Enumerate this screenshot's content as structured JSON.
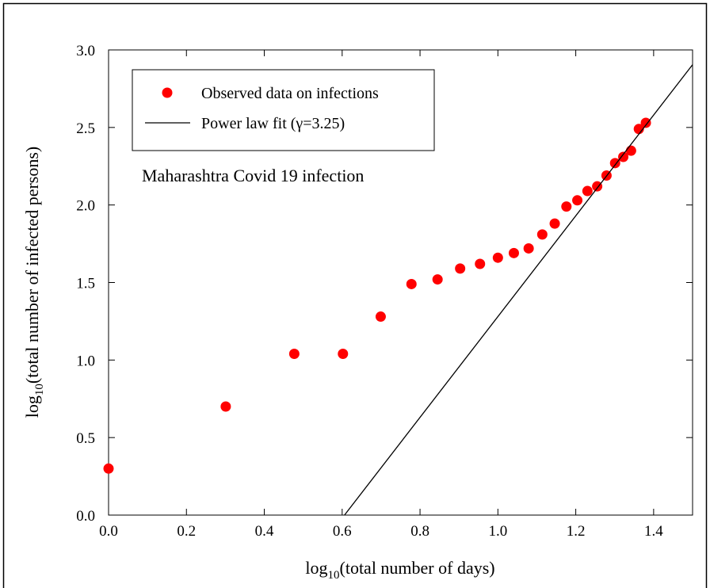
{
  "chart_data": {
    "type": "scatter",
    "annotation": "Maharashtra Covid 19 infection",
    "xlabel": [
      "log",
      "10",
      "(total number of days)"
    ],
    "ylabel": [
      "log",
      "10",
      "(total number of infected persons)"
    ],
    "xlim": [
      0,
      1.5
    ],
    "ylim": [
      0,
      3
    ],
    "xticks": [
      {
        "value": 0,
        "label": "0.0"
      },
      0.2,
      0.4,
      0.6,
      0.8,
      {
        "value": 1,
        "label": "1.0"
      },
      1.2,
      1.4
    ],
    "yticks": [
      {
        "value": 0,
        "label": "0.0"
      },
      0.5,
      {
        "value": 1,
        "label": "1.0"
      },
      1.5,
      {
        "value": 2,
        "label": "2.0"
      },
      2.5,
      {
        "value": 3,
        "label": "3.0"
      }
    ],
    "series": [
      {
        "name": "Observed data on infections",
        "type": "scatter",
        "color": "#ff0000",
        "x": [
          0,
          0.301,
          0.477,
          0.602,
          0.699,
          0.778,
          0.845,
          0.903,
          0.954,
          1.0,
          1.041,
          1.079,
          1.114,
          1.146,
          1.176,
          1.204,
          1.23,
          1.255,
          1.279,
          1.301,
          1.322,
          1.342,
          1.362,
          1.38
        ],
        "values": [
          0.3,
          0.7,
          1.04,
          1.04,
          1.28,
          1.49,
          1.52,
          1.59,
          1.62,
          1.66,
          1.69,
          1.72,
          1.81,
          1.88,
          1.99,
          2.03,
          2.09,
          2.12,
          2.19,
          2.27,
          2.31,
          2.35,
          2.49,
          2.53
        ]
      },
      {
        "name": "Power law fit (γ=3.25)",
        "type": "line",
        "color": "#000000",
        "x": [
          0.606,
          1.5
        ],
        "values": [
          0,
          2.905
        ]
      }
    ]
  }
}
